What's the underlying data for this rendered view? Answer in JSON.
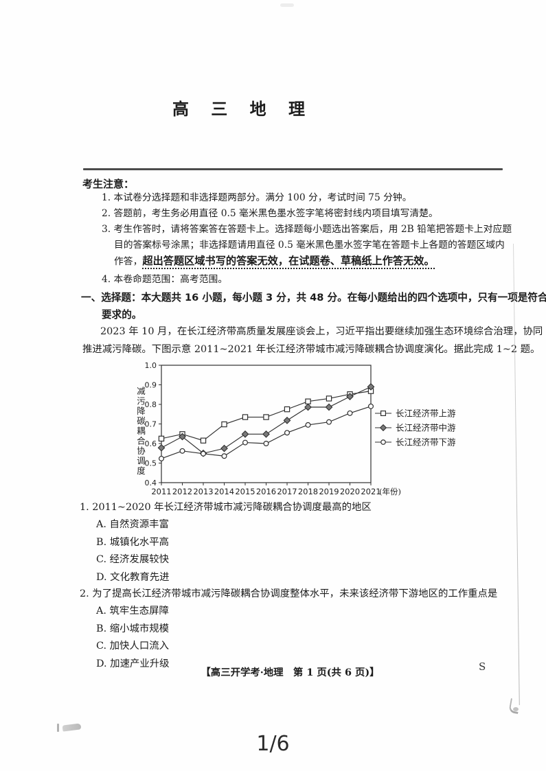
{
  "viewer": {
    "page_indicator": "1/6"
  },
  "doc": {
    "title": "高 三 地 理",
    "notice": {
      "heading": "考生注意：",
      "lines": [
        {
          "indent": 1,
          "text": "1. 本试卷分选择题和非选择题两部分。满分 100 分，考试时间 75 分钟。"
        },
        {
          "indent": 1,
          "text": "2. 答题前，考生务必用直径 0.5 毫米黑色墨水签字笔将密封线内项目填写清楚。"
        },
        {
          "indent": 1,
          "text": "3. 考生作答时，请将答案答在答题卡上。选择题每小题选出答案后，用 2B 铅笔把答题卡上对应题"
        },
        {
          "indent": 2,
          "text": "目的答案标号涂黑；非选择题请用直径 0.5 毫米黑色墨水签字笔在答题卡上各题的答题区域内"
        },
        {
          "indent": 2,
          "prefix": "作答，",
          "emphasis": "超出答题区域书写的答案无效，在试题卷、草稿纸上作答无效。"
        },
        {
          "indent": 1,
          "gap": true,
          "text": "4. 本卷命题范围：高考范围。"
        }
      ]
    },
    "section": {
      "line1": "一、选择题：本大题共 16 小题，每小题 3 分，共 48 分。在每小题给出的四个选项中，只有一项是符合题目",
      "line2": "要求的。"
    },
    "intro": {
      "line1": "2023 年 10 月，在长江经济带高质量发展座谈会上，习近平指出要继续加强生态环境综合治理，协同",
      "line2": "推进减污降碳。下图示意 2011~2021 年长江经济带城市减污降碳耦合协调度演化。据此完成 1~2 题。"
    },
    "questions": [
      {
        "text": "1. 2011~2020 年长江经济带城市减污降碳耦合协调度最高的地区",
        "options": [
          "A. 自然资源丰富",
          "B. 城镇化水平高",
          "C. 经济发展较快",
          "D. 文化教育先进"
        ]
      },
      {
        "text": "2. 为了提高长江经济带城市减污降碳耦合协调度整体水平，未来该经济带下游地区的工作重点是",
        "options": [
          "A. 筑牢生态屏障",
          "B. 缩小城市规模",
          "C. 加快人口流入",
          "D. 加速产业升级"
        ]
      }
    ],
    "footer": "【高三开学考·地理　第 1 页(共 6 页)】",
    "side_mark": "S"
  },
  "chart_data": {
    "type": "line",
    "x": [
      2011,
      2012,
      2013,
      2014,
      2015,
      2016,
      2017,
      2018,
      2019,
      2020,
      2021
    ],
    "x_suffix": "(年份)",
    "ylabel": "减污降碳耦合协调度",
    "ylim": [
      0.4,
      1.0
    ],
    "yticks": [
      0.4,
      0.5,
      0.6,
      0.7,
      0.8,
      0.9,
      1.0
    ],
    "grid": false,
    "legend_position": "right",
    "series": [
      {
        "name": "长江经济带上游",
        "marker": "square",
        "values": [
          0.625,
          0.648,
          0.615,
          0.698,
          0.735,
          0.735,
          0.775,
          0.815,
          0.83,
          0.852,
          0.868
        ]
      },
      {
        "name": "长江经济带中游",
        "marker": "diamond",
        "values": [
          0.578,
          0.635,
          0.55,
          0.575,
          0.648,
          0.648,
          0.718,
          0.786,
          0.786,
          0.84,
          0.89
        ]
      },
      {
        "name": "长江经济带下游",
        "marker": "circle",
        "values": [
          0.523,
          0.562,
          0.548,
          0.536,
          0.605,
          0.6,
          0.655,
          0.695,
          0.71,
          0.755,
          0.79
        ]
      }
    ],
    "colors": {
      "line": "#2f2f2f",
      "marker_fill_open": "#ffffff",
      "marker_fill_solid": "#7a7a7a",
      "text": "#222222"
    }
  }
}
